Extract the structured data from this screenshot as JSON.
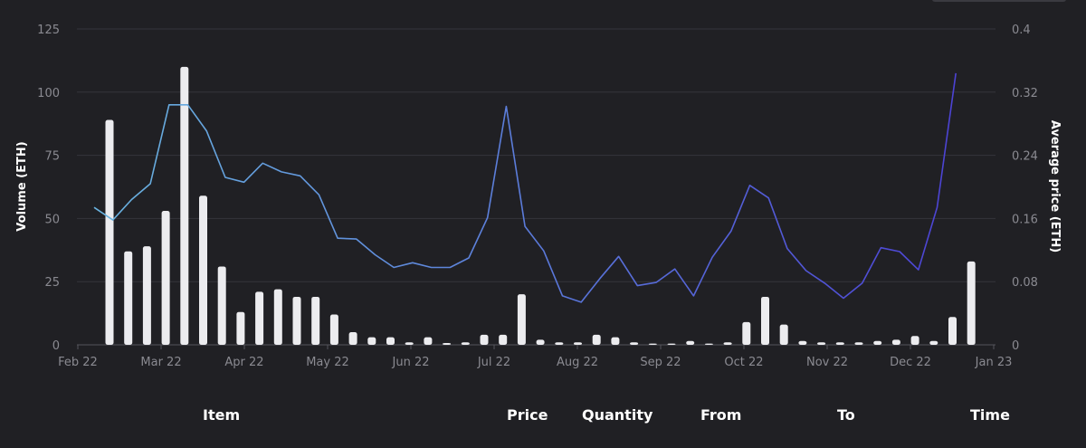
{
  "chart_data": {
    "type": "bar+line",
    "x_labels": [
      "Feb 22",
      "Mar 22",
      "Apr 22",
      "May 22",
      "Jun 22",
      "Jul 22",
      "Aug 22",
      "Sep 22",
      "Oct 22",
      "Nov 22",
      "Dec 22",
      "Jan 23"
    ],
    "ylabel_left": "Volume (ETH)",
    "ylabel_right": "Average price (ETH)",
    "ylim_left": [
      0,
      125
    ],
    "ylim_right": [
      0,
      0.4
    ],
    "yticks_left": [
      "0",
      "25",
      "50",
      "75",
      "100",
      "125"
    ],
    "yticks_right": [
      "0",
      "0.08",
      "0.16",
      "0.24",
      "0.32",
      "0.4"
    ],
    "grid": true,
    "series": [
      {
        "kind": "bar",
        "color": "#ececef",
        "values": [
          89,
          37,
          39,
          53,
          110,
          59,
          31,
          13,
          21,
          22,
          19,
          19,
          12,
          5,
          3,
          3,
          1,
          3,
          0.7,
          1,
          4,
          4,
          20,
          2,
          1,
          1,
          4,
          3,
          1,
          0.5,
          0.5,
          1.5,
          0.5,
          1,
          9,
          19,
          8,
          1.5,
          1,
          1,
          1,
          1.5,
          2,
          3.5,
          1.5,
          11,
          33
        ]
      },
      {
        "kind": "line",
        "gradient": [
          "#6ab4e0",
          "#4b3fd4"
        ],
        "values": [
          0.174,
          0.158,
          0.184,
          0.204,
          0.304,
          0.304,
          0.271,
          0.212,
          0.206,
          0.23,
          0.219,
          0.214,
          0.19,
          0.135,
          0.134,
          0.114,
          0.098,
          0.104,
          0.098,
          0.098,
          0.11,
          0.161,
          0.302,
          0.15,
          0.119,
          0.062,
          0.054,
          0.084,
          0.112,
          0.075,
          0.079,
          0.096,
          0.062,
          0.111,
          0.144,
          0.202,
          0.186,
          0.122,
          0.094,
          0.078,
          0.059,
          0.078,
          0.123,
          0.118,
          0.095,
          0.174,
          0.344
        ]
      }
    ]
  },
  "table_header": {
    "item": "Item",
    "price": "Price",
    "quantity": "Quantity",
    "from": "From",
    "to": "To",
    "time": "Time"
  }
}
